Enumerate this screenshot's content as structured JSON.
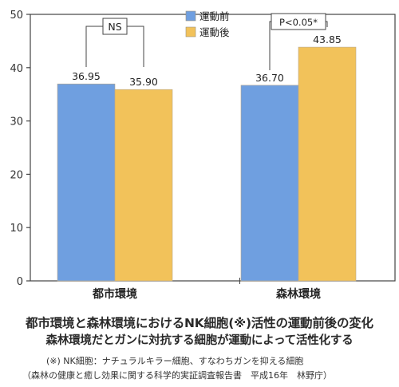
{
  "chart_data": {
    "type": "bar",
    "categories": [
      "都市環境",
      "森林環境"
    ],
    "series": [
      {
        "name": "運動前",
        "values": [
          36.95,
          36.7
        ],
        "value_labels": [
          "36.95",
          "36.70"
        ],
        "color": "#6f9fe0"
      },
      {
        "name": "運動後",
        "values": [
          35.9,
          43.85
        ],
        "value_labels": [
          "35.90",
          "43.85"
        ],
        "color": "#f2c25a"
      }
    ],
    "ylim": [
      0,
      50
    ],
    "yticks": [
      0,
      10,
      20,
      30,
      40,
      50
    ],
    "grid": false,
    "legend": "top-center",
    "annotations": [
      {
        "text": "NS",
        "category": "都市環境"
      },
      {
        "text": "P<0.05*",
        "category": "森林環境"
      }
    ]
  },
  "caption": {
    "title": "都市環境と森林環境におけるNK細胞(※)活性の運動前後の変化",
    "subtitle": "森林環境だとガンに対抗する細胞が運動によって活性化する",
    "note1": "(※) NK細胞：ナチュラルキラー細胞、すなわちガンを抑える細胞",
    "note2": "（森林の健康と癒し効果に関する科学的実証調査報告書　平成16年　林野庁）"
  }
}
